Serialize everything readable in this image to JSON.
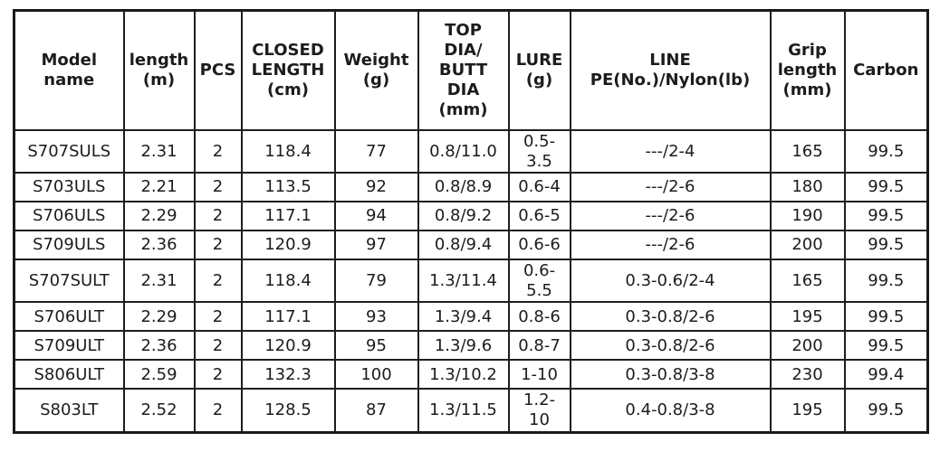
{
  "table": {
    "headers": {
      "model": "Model\nname",
      "length": "length\n(m)",
      "pcs": "PCS",
      "closed": "CLOSED\nLENGTH\n(cm)",
      "weight": "Weight\n(g)",
      "dia": "TOP\nDIA/\nBUTT\nDIA\n(mm)",
      "lure": "LURE\n(g)",
      "line": "LINE\nPE(No.)/Nylon(lb)",
      "grip": "Grip\nlength\n(mm)",
      "carbon": "Carbon"
    },
    "rows": [
      {
        "model": "S707SULS",
        "length": "2.31",
        "pcs": "2",
        "closed": "118.4",
        "weight": "77",
        "dia": "0.8/11.0",
        "lure": "0.5-\n3.5",
        "line": "---/2-4",
        "grip": "165",
        "carbon": "99.5"
      },
      {
        "model": "S703ULS",
        "length": "2.21",
        "pcs": "2",
        "closed": "113.5",
        "weight": "92",
        "dia": "0.8/8.9",
        "lure": "0.6-4",
        "line": "---/2-6",
        "grip": "180",
        "carbon": "99.5"
      },
      {
        "model": "S706ULS",
        "length": "2.29",
        "pcs": "2",
        "closed": "117.1",
        "weight": "94",
        "dia": "0.8/9.2",
        "lure": "0.6-5",
        "line": "---/2-6",
        "grip": "190",
        "carbon": "99.5"
      },
      {
        "model": "S709ULS",
        "length": "2.36",
        "pcs": "2",
        "closed": "120.9",
        "weight": "97",
        "dia": "0.8/9.4",
        "lure": "0.6-6",
        "line": "---/2-6",
        "grip": "200",
        "carbon": "99.5"
      },
      {
        "model": "S707SULT",
        "length": "2.31",
        "pcs": "2",
        "closed": "118.4",
        "weight": "79",
        "dia": "1.3/11.4",
        "lure": "0.6-\n5.5",
        "line": "0.3-0.6/2-4",
        "grip": "165",
        "carbon": "99.5"
      },
      {
        "model": "S706ULT",
        "length": "2.29",
        "pcs": "2",
        "closed": "117.1",
        "weight": "93",
        "dia": "1.3/9.4",
        "lure": "0.8-6",
        "line": "0.3-0.8/2-6",
        "grip": "195",
        "carbon": "99.5"
      },
      {
        "model": "S709ULT",
        "length": "2.36",
        "pcs": "2",
        "closed": "120.9",
        "weight": "95",
        "dia": "1.3/9.6",
        "lure": "0.8-7",
        "line": "0.3-0.8/2-6",
        "grip": "200",
        "carbon": "99.5"
      },
      {
        "model": "S806ULT",
        "length": "2.59",
        "pcs": "2",
        "closed": "132.3",
        "weight": "100",
        "dia": "1.3/10.2",
        "lure": "1-10",
        "line": "0.3-0.8/3-8",
        "grip": "230",
        "carbon": "99.4"
      },
      {
        "model": "S803LT",
        "length": "2.52",
        "pcs": "2",
        "closed": "128.5",
        "weight": "87",
        "dia": "1.3/11.5",
        "lure": "1.2-\n10",
        "line": "0.4-0.8/3-8",
        "grip": "195",
        "carbon": "99.5"
      }
    ]
  }
}
